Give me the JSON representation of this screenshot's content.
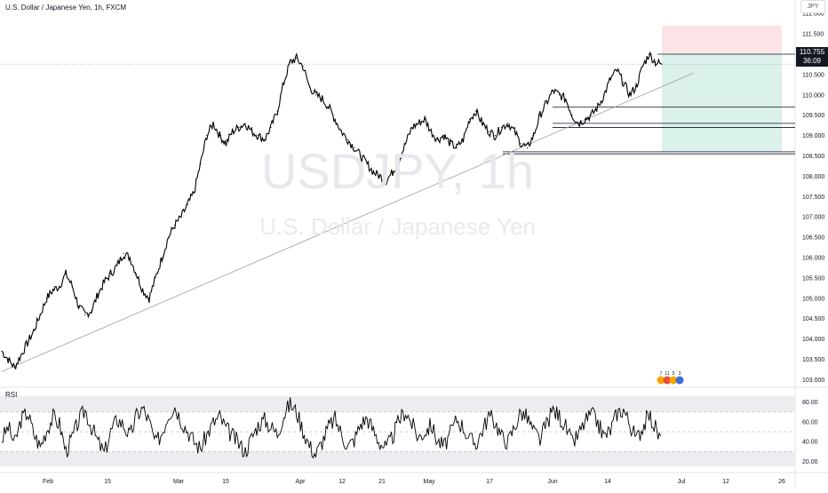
{
  "header": {
    "symbol_title": "U.S. Dollar / Japanese Yen, 1h, FXCM",
    "currency": "JPY"
  },
  "watermark": {
    "main": "USDJPY, 1h",
    "sub": "U.S. Dollar / Japanese Yen"
  },
  "last_price": {
    "value": "110.755",
    "countdown": "36:09"
  },
  "rsi_panel": {
    "title": "RSI"
  },
  "colors": {
    "accent_dark": "#131722",
    "stop_zone": "#fbdde0",
    "target_zone": "#d6efea",
    "rsi_band": "#ebedf0",
    "candle": "#000000"
  },
  "chart_data": [
    {
      "type": "line",
      "name": "price",
      "title": "U.S. Dollar / Japanese Yen, 1h, FXCM",
      "xlabel": "",
      "ylabel": "",
      "x_tick_labels": [
        "Feb",
        "15",
        "Mar",
        "15",
        "Apr",
        "12",
        "21",
        "May",
        "17",
        "Jun",
        "14",
        "Jul",
        "12",
        "26"
      ],
      "y_tick_labels": [
        "103.000",
        "103.500",
        "104.000",
        "104.500",
        "105.000",
        "105.500",
        "106.000",
        "106.500",
        "107.000",
        "107.500",
        "108.000",
        "108.500",
        "109.000",
        "109.500",
        "110.000",
        "110.500",
        "111.000",
        "111.500",
        "112.000"
      ],
      "ylim": [
        102.9,
        112.2
      ],
      "grid": false,
      "series": [
        {
          "values": [
            103.7,
            103.5,
            103.3,
            103.6,
            103.9,
            104.2,
            104.6,
            105.0,
            105.2,
            105.3,
            105.6,
            105.3,
            104.8,
            104.6,
            104.7,
            105.1,
            105.4,
            105.6,
            105.8,
            106.1,
            106.0,
            105.6,
            105.2,
            105.0,
            105.5,
            106.0,
            106.5,
            106.8,
            107.0,
            107.3,
            107.6,
            108.3,
            109.0,
            109.3,
            109.0,
            108.8,
            109.1,
            109.2,
            109.3,
            109.1,
            109.0,
            108.9,
            109.2,
            109.6,
            110.3,
            110.8,
            110.9,
            110.7,
            110.2,
            110.0,
            109.9,
            109.7,
            109.4,
            109.1,
            108.9,
            108.7,
            108.5,
            108.3,
            108.1,
            108.0,
            107.9,
            108.1,
            108.4,
            108.8,
            109.2,
            109.3,
            109.4,
            109.1,
            108.9,
            109.0,
            108.8,
            108.7,
            108.9,
            109.4,
            109.6,
            109.3,
            109.1,
            109.0,
            109.2,
            109.3,
            109.1,
            108.8,
            108.7,
            109.0,
            109.5,
            109.8,
            110.1,
            110.0,
            109.9,
            109.5,
            109.3,
            109.4,
            109.5,
            109.7,
            110.0,
            110.4,
            110.6,
            110.3,
            110.0,
            110.2,
            110.7,
            111.0,
            110.8,
            110.755
          ]
        }
      ],
      "levels": [
        111.0,
        109.7,
        109.3,
        109.2,
        108.6,
        108.55
      ],
      "last_price": 110.755,
      "trendline": {
        "from": [
          0,
          103.2
        ],
        "to": [
          103,
          110.2
        ]
      },
      "position": {
        "entry": 111.0,
        "stop": 111.7,
        "target": 108.6
      },
      "events": [
        "7",
        "11",
        "5",
        "3"
      ]
    },
    {
      "type": "line",
      "name": "RSI",
      "title": "RSI",
      "xlabel": "",
      "ylabel": "",
      "y_tick_labels": [
        "20.00",
        "40.00",
        "60.00",
        "80.00"
      ],
      "ylim": [
        15,
        86
      ],
      "bands": [
        30,
        70
      ],
      "grid": false,
      "series": [
        {
          "name": "RSI",
          "values": [
            42,
            55,
            38,
            62,
            70,
            48,
            35,
            52,
            65,
            58,
            30,
            44,
            61,
            72,
            55,
            40,
            28,
            50,
            63,
            57,
            45,
            66,
            74,
            60,
            38,
            49,
            68,
            76,
            62,
            51,
            40,
            33,
            47,
            59,
            65,
            53,
            46,
            38,
            30,
            44,
            57,
            62,
            55,
            48,
            67,
            78,
            70,
            52,
            36,
            27,
            40,
            55,
            63,
            48,
            35,
            42,
            58,
            64,
            51,
            39,
            33,
            45,
            62,
            71,
            58,
            44,
            50,
            57,
            41,
            35,
            48,
            63,
            55,
            42,
            38,
            52,
            66,
            60,
            45,
            40,
            55,
            70,
            64,
            50,
            42,
            58,
            72,
            66,
            55,
            38,
            47,
            60,
            68,
            59,
            45,
            52,
            69,
            73,
            58,
            42,
            55,
            67,
            54,
            38
          ]
        }
      ]
    }
  ]
}
